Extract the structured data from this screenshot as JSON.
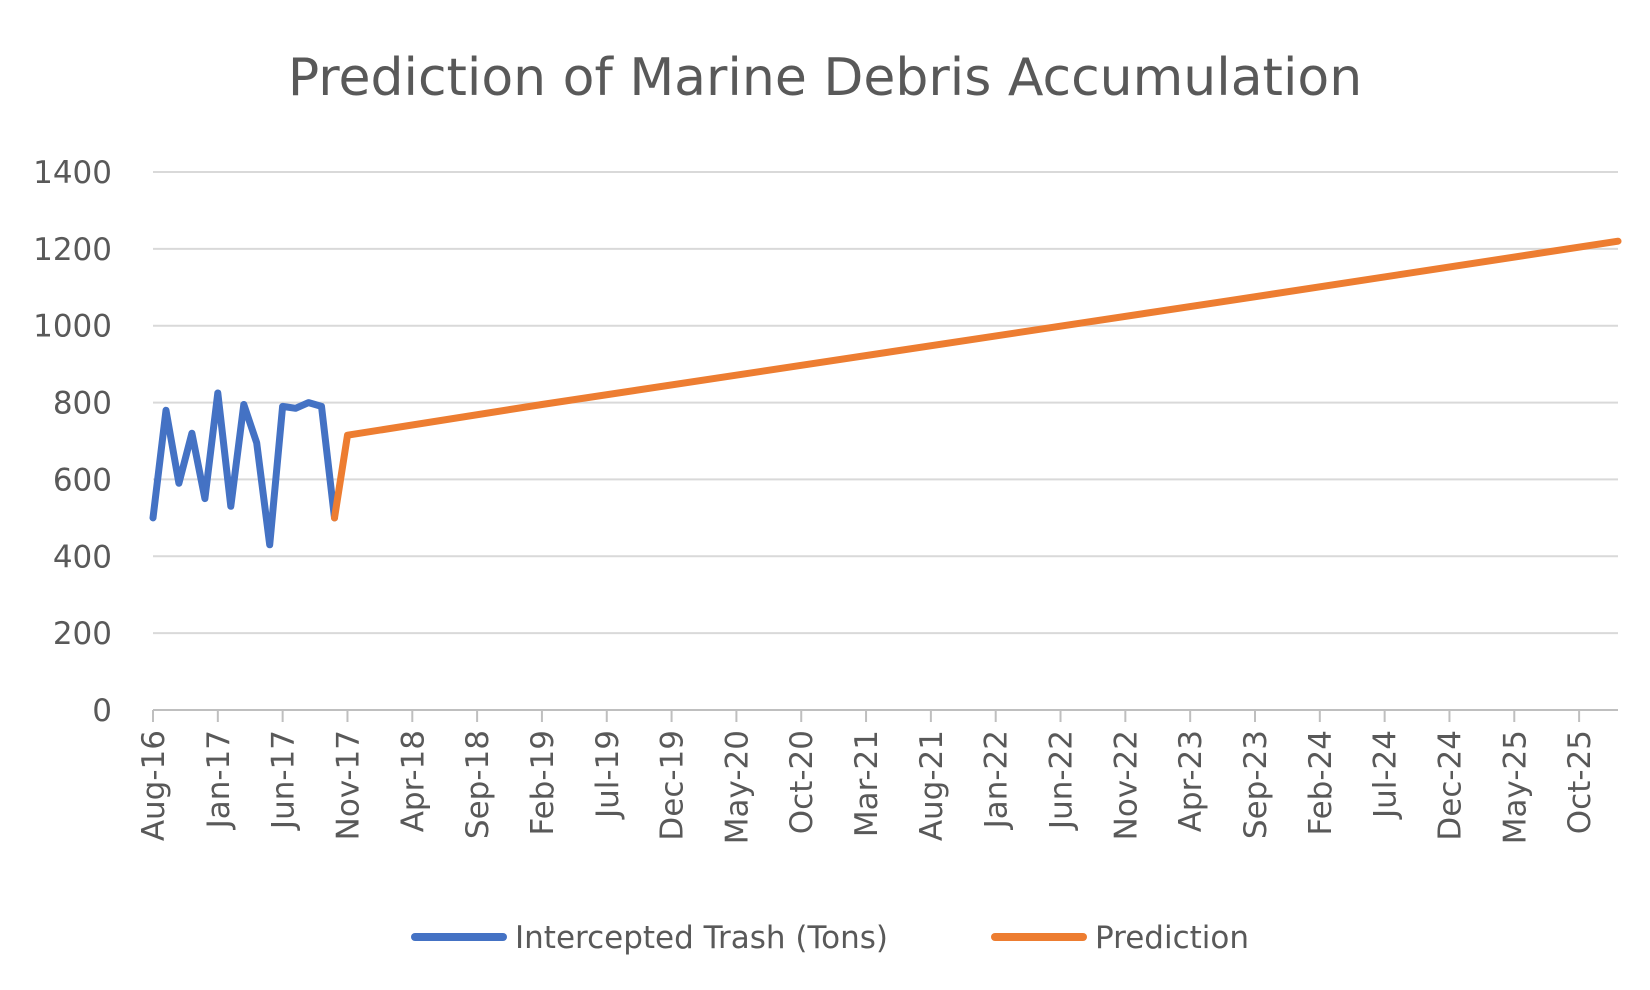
{
  "chart_data": {
    "type": "line",
    "title": "Prediction of Marine Debris Accumulation",
    "ylim": [
      0,
      1400
    ],
    "y_ticks": [
      0,
      200,
      400,
      600,
      800,
      1000,
      1200,
      1400
    ],
    "x_range": [
      "Aug-16",
      "Jan-26"
    ],
    "x_tick_labels": [
      "Aug-16",
      "Jan-17",
      "Jun-17",
      "Nov-17",
      "Apr-18",
      "Sep-18",
      "Feb-19",
      "Jul-19",
      "Dec-19",
      "May-20",
      "Oct-20",
      "Mar-21",
      "Aug-21",
      "Jan-22",
      "Jun-22",
      "Nov-22",
      "Apr-23",
      "Sep-23",
      "Feb-24",
      "Jul-24",
      "Dec-24",
      "May-25",
      "Oct-25"
    ],
    "grid": true,
    "legend_position": "bottom",
    "series": [
      {
        "name": "Intercepted Trash (Tons)",
        "color": "#4472c4",
        "x": [
          "Aug-16",
          "Sep-16",
          "Oct-16",
          "Nov-16",
          "Dec-16",
          "Jan-17",
          "Feb-17",
          "Mar-17",
          "Apr-17",
          "May-17",
          "Jun-17",
          "Jul-17",
          "Aug-17",
          "Sep-17",
          "Oct-17"
        ],
        "y": [
          500,
          780,
          590,
          720,
          550,
          825,
          530,
          795,
          695,
          430,
          790,
          785,
          800,
          790,
          500
        ]
      },
      {
        "name": "Prediction",
        "color": "#ed7d31",
        "x": [
          "Oct-17",
          "Nov-17",
          "Feb-19",
          "Jul-23",
          "Jan-26"
        ],
        "y": [
          500,
          715,
          795,
          1065,
          1220
        ]
      }
    ]
  }
}
